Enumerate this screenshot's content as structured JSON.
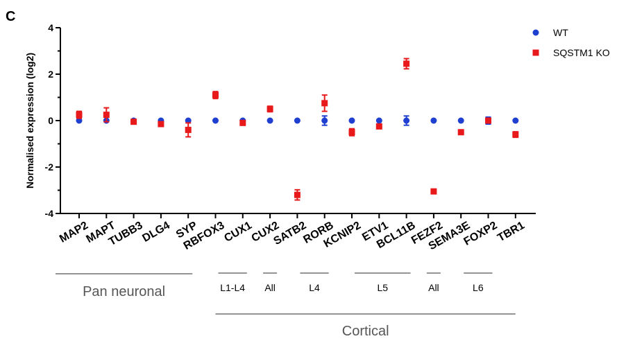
{
  "panel_label": "C",
  "chart_data": {
    "type": "scatter",
    "ylabel": "Normalised expression (log2)",
    "xlabel": "",
    "ylim": [
      -4,
      4
    ],
    "yticks": [
      "4",
      "2",
      "0",
      "-2",
      "-4"
    ],
    "categories": [
      "MAP2",
      "MAPT",
      "TUBB3",
      "DLG4",
      "SYP",
      "RBFOX3",
      "CUX1",
      "CUX2",
      "SATB2",
      "RORB",
      "KCNIP2",
      "ETV1",
      "BCL11B",
      "FEZF2",
      "SEMA3E",
      "FOXP2",
      "TBR1"
    ],
    "series": [
      {
        "name": "WT",
        "color": "#1f3fd0",
        "marker": "circle",
        "values": [
          0,
          0,
          0,
          0,
          0,
          0,
          0,
          0,
          0,
          0,
          0,
          0,
          0,
          0,
          0,
          0,
          0
        ],
        "errors": [
          0.05,
          0.05,
          0.05,
          0.05,
          0.05,
          0.05,
          0.05,
          0.05,
          0.05,
          0.2,
          0.05,
          0.05,
          0.2,
          0.05,
          0.05,
          0.15,
          0.05
        ]
      },
      {
        "name": "SQSTM1 KO",
        "color": "#e8191b",
        "marker": "square",
        "values": [
          0.25,
          0.25,
          -0.05,
          -0.15,
          -0.4,
          1.1,
          -0.1,
          0.5,
          -3.2,
          0.75,
          -0.5,
          -0.25,
          2.45,
          -3.05,
          -0.5,
          0,
          -0.6
        ],
        "errors": [
          0.15,
          0.3,
          0.05,
          0.05,
          0.3,
          0.15,
          0.05,
          0.12,
          0.22,
          0.35,
          0.15,
          0.05,
          0.22,
          0.05,
          0.05,
          0.08,
          0.12
        ]
      }
    ],
    "legend": {
      "placement": "top-right"
    },
    "groups": {
      "primary": [
        {
          "label": "Pan neuronal",
          "from": "MAP2",
          "to": "SYP"
        },
        {
          "label": "Cortical",
          "from": "RBFOX3",
          "to": "TBR1"
        }
      ],
      "secondary": [
        {
          "label": "L1-L4",
          "from": "RBFOX3",
          "to": "CUX1"
        },
        {
          "label": "All",
          "from": "CUX2",
          "to": "CUX2"
        },
        {
          "label": "L4",
          "from": "SATB2",
          "to": "RORB"
        },
        {
          "label": "L5",
          "from": "KCNIP2",
          "to": "BCL11B"
        },
        {
          "label": "All",
          "from": "FEZF2",
          "to": "FEZF2"
        },
        {
          "label": "L6",
          "from": "SEMA3E",
          "to": "FOXP2"
        }
      ]
    }
  }
}
